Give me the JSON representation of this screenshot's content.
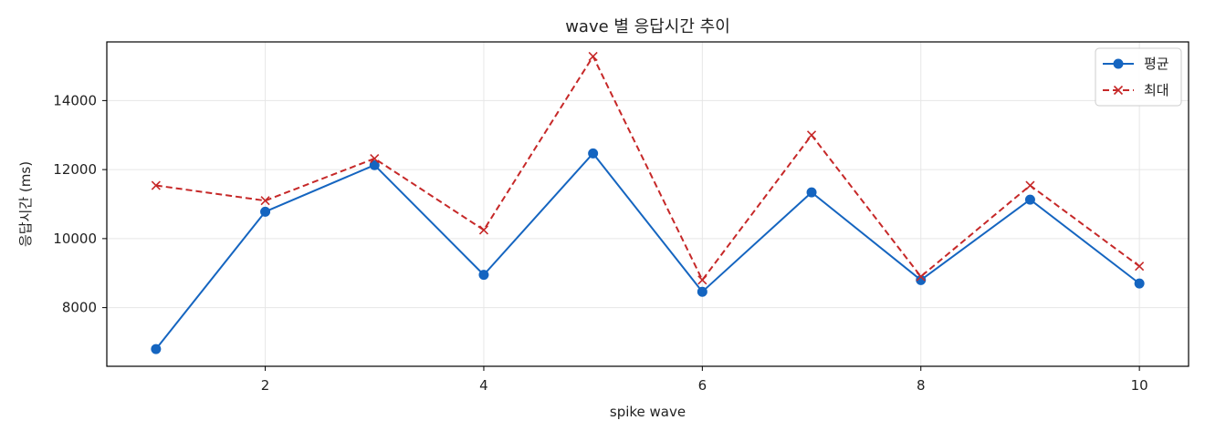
{
  "chart_data": {
    "type": "line",
    "title": "wave 별 응답시간 추이",
    "xlabel": "spike wave",
    "ylabel": "응답시간 (ms)",
    "x": [
      1,
      2,
      3,
      4,
      5,
      6,
      7,
      8,
      9,
      10
    ],
    "xlim": [
      0.55,
      10.45
    ],
    "ylim": [
      6300,
      15700
    ],
    "xticks": [
      2,
      4,
      6,
      8,
      10
    ],
    "yticks": [
      8000,
      10000,
      12000,
      14000
    ],
    "grid": true,
    "legend_position": "top-right",
    "series": [
      {
        "name": "평균",
        "values": [
          6800,
          10780,
          12130,
          8950,
          12470,
          8460,
          11340,
          8800,
          11130,
          8700
        ],
        "color": "#1565c0",
        "line_style": "solid",
        "marker": "circle"
      },
      {
        "name": "최대",
        "values": [
          11540,
          11100,
          12320,
          10250,
          15280,
          8800,
          13000,
          8900,
          11540,
          9200
        ],
        "color": "#c62828",
        "line_style": "dashed",
        "marker": "x"
      }
    ]
  }
}
